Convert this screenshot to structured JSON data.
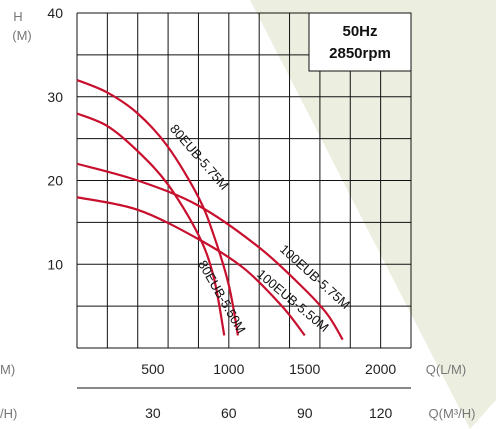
{
  "chart_data": {
    "type": "line",
    "info_box": {
      "line1": "50Hz",
      "line2": "2850rpm"
    },
    "y_axis": {
      "label_top": "H",
      "label_unit": "(M)",
      "range": [
        0,
        40
      ],
      "ticks": [
        10,
        20,
        30,
        40
      ]
    },
    "x_axis": {
      "unit": "Q(L/M)",
      "unit_cut": "M)",
      "range": [
        0,
        2200
      ],
      "ticks": [
        500,
        1000,
        1500,
        2000
      ]
    },
    "x_axis_secondary": {
      "unit": "Q(M³/H)",
      "unit_cut": "/H)",
      "ticks": [
        30,
        60,
        90,
        120
      ]
    },
    "grid": true,
    "series_color": "#c8102e",
    "shade_color": "#ecefe0",
    "series": [
      {
        "name": "80EUB-5.75M",
        "x": [
          0,
          200,
          400,
          600,
          800,
          900,
          1000,
          1060
        ],
        "y": [
          32,
          30.5,
          28,
          24,
          18,
          13.5,
          7.5,
          1.5
        ]
      },
      {
        "name": "80EUB-5.50M",
        "x": [
          0,
          200,
          400,
          600,
          800,
          900,
          970
        ],
        "y": [
          28,
          26.5,
          23.5,
          19.5,
          13.5,
          8.5,
          1.5
        ]
      },
      {
        "name": "100EUB-5.75M",
        "x": [
          0,
          400,
          800,
          1200,
          1500,
          1650,
          1750
        ],
        "y": [
          22,
          20,
          17,
          12,
          7,
          4,
          1
        ]
      },
      {
        "name": "100EUB-5.50M",
        "x": [
          0,
          400,
          800,
          1100,
          1350,
          1500
        ],
        "y": [
          18,
          16.5,
          13,
          9.5,
          5,
          1.5
        ]
      }
    ]
  }
}
